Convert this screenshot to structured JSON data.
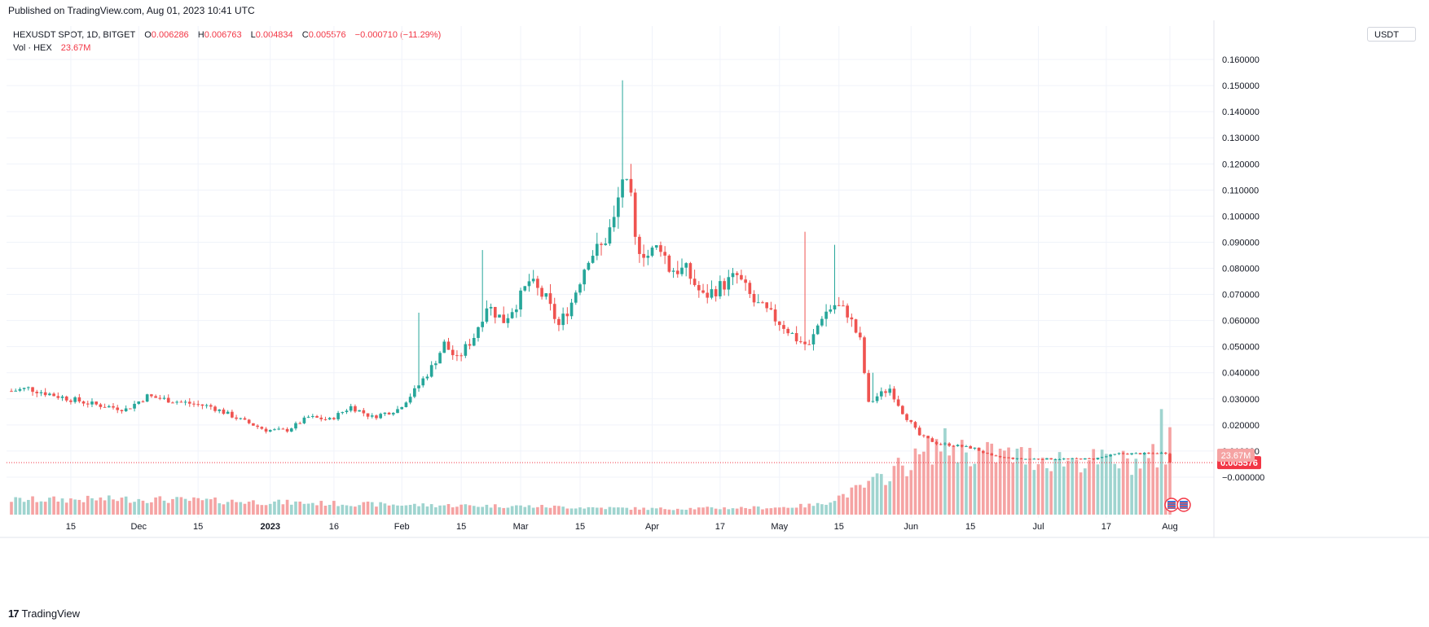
{
  "header": {
    "published": "Published on TradingView.com, Aug 01, 2023 10:41 UTC"
  },
  "legend": {
    "symbol": "HEXUSDT SPOT, 1D, BITGET",
    "open_label": "O",
    "open": "0.006286",
    "high_label": "H",
    "high": "0.006763",
    "low_label": "L",
    "low": "0.004834",
    "close_label": "C",
    "close": "0.005576",
    "change": "−0.000710 (−11.29%)",
    "vol_label": "Vol · HEX",
    "vol_value": "23.67M"
  },
  "scale": {
    "currency": "USDT"
  },
  "footer": {
    "brand": "TradingView",
    "logo_mark": "17"
  },
  "colors": {
    "up": "#26a69a",
    "down": "#ef5350",
    "vol_up": "#9fd4cf",
    "vol_down": "#f5a3a3",
    "grid": "#f0f3fa",
    "price_line": "#f23645"
  },
  "icons": {
    "flags": [
      "us-flag-icon",
      "us-flag-icon"
    ]
  },
  "chart_data": {
    "type": "candlestick",
    "symbol": "HEXUSDT",
    "interval": "1D",
    "y_ticks": [
      "0.160000",
      "0.150000",
      "0.140000",
      "0.130000",
      "0.120000",
      "0.110000",
      "0.100000",
      "0.090000",
      "0.080000",
      "0.070000",
      "0.060000",
      "0.050000",
      "0.040000",
      "0.030000",
      "0.020000",
      "0.010000",
      "−0.000000"
    ],
    "y_range": [
      -0.005,
      0.165
    ],
    "x_ticks": [
      {
        "label": "15",
        "date": "2022-11-15"
      },
      {
        "label": "Dec",
        "date": "2022-12-01"
      },
      {
        "label": "15",
        "date": "2022-12-15"
      },
      {
        "label": "2023",
        "date": "2023-01-01",
        "bold": true
      },
      {
        "label": "16",
        "date": "2023-01-16"
      },
      {
        "label": "Feb",
        "date": "2023-02-01"
      },
      {
        "label": "15",
        "date": "2023-02-15"
      },
      {
        "label": "Mar",
        "date": "2023-03-01"
      },
      {
        "label": "15",
        "date": "2023-03-15"
      },
      {
        "label": "Apr",
        "date": "2023-04-01"
      },
      {
        "label": "17",
        "date": "2023-04-17"
      },
      {
        "label": "May",
        "date": "2023-05-01"
      },
      {
        "label": "15",
        "date": "2023-05-15"
      },
      {
        "label": "Jun",
        "date": "2023-06-01"
      },
      {
        "label": "15",
        "date": "2023-06-15"
      },
      {
        "label": "Jul",
        "date": "2023-07-01"
      },
      {
        "label": "17",
        "date": "2023-07-17"
      },
      {
        "label": "Aug",
        "date": "2023-08-01"
      }
    ],
    "last_price": 0.005576,
    "last_price_label": "0.005576",
    "last_volume_label": "23.67M",
    "price_keypoints": [
      [
        "2022-11-01",
        0.033
      ],
      [
        "2022-11-05",
        0.034
      ],
      [
        "2022-11-12",
        0.031
      ],
      [
        "2022-11-20",
        0.028
      ],
      [
        "2022-11-28",
        0.026
      ],
      [
        "2022-12-03",
        0.031
      ],
      [
        "2022-12-10",
        0.029
      ],
      [
        "2022-12-18",
        0.027
      ],
      [
        "2022-12-25",
        0.022
      ],
      [
        "2022-12-31",
        0.018
      ],
      [
        "2023-01-05",
        0.018
      ],
      [
        "2023-01-10",
        0.023
      ],
      [
        "2023-01-15",
        0.022
      ],
      [
        "2023-01-20",
        0.027
      ],
      [
        "2023-01-25",
        0.023
      ],
      [
        "2023-01-31",
        0.026
      ],
      [
        "2023-02-04",
        0.033
      ],
      [
        "2023-02-08",
        0.042
      ],
      [
        "2023-02-11",
        0.051
      ],
      [
        "2023-02-14",
        0.045
      ],
      [
        "2023-02-18",
        0.054
      ],
      [
        "2023-02-21",
        0.066
      ],
      [
        "2023-02-25",
        0.06
      ],
      [
        "2023-03-01",
        0.069
      ],
      [
        "2023-03-03",
        0.075
      ],
      [
        "2023-03-07",
        0.068
      ],
      [
        "2023-03-10",
        0.058
      ],
      [
        "2023-03-13",
        0.067
      ],
      [
        "2023-03-17",
        0.085
      ],
      [
        "2023-03-20",
        0.088
      ],
      [
        "2023-03-23",
        0.098
      ],
      [
        "2023-03-25",
        0.115
      ],
      [
        "2023-03-27",
        0.105
      ],
      [
        "2023-03-28",
        0.09
      ],
      [
        "2023-03-31",
        0.085
      ],
      [
        "2023-04-03",
        0.089
      ],
      [
        "2023-04-05",
        0.08
      ],
      [
        "2023-04-09",
        0.079
      ],
      [
        "2023-04-13",
        0.069
      ],
      [
        "2023-04-17",
        0.073
      ],
      [
        "2023-04-21",
        0.077
      ],
      [
        "2023-04-25",
        0.067
      ],
      [
        "2023-04-29",
        0.062
      ],
      [
        "2023-05-02",
        0.058
      ],
      [
        "2023-05-05",
        0.053
      ],
      [
        "2023-05-08",
        0.05
      ],
      [
        "2023-05-11",
        0.062
      ],
      [
        "2023-05-14",
        0.066
      ],
      [
        "2023-05-17",
        0.063
      ],
      [
        "2023-05-20",
        0.052
      ],
      [
        "2023-05-22",
        0.028
      ],
      [
        "2023-05-24",
        0.031
      ],
      [
        "2023-05-27",
        0.034
      ],
      [
        "2023-05-30",
        0.025
      ],
      [
        "2023-06-03",
        0.016
      ],
      [
        "2023-06-07",
        0.013
      ],
      [
        "2023-06-12",
        0.012
      ],
      [
        "2023-06-16",
        0.011
      ],
      [
        "2023-06-20",
        0.008
      ],
      [
        "2023-06-26",
        0.007
      ],
      [
        "2023-07-02",
        0.007
      ],
      [
        "2023-07-08",
        0.007
      ],
      [
        "2023-07-14",
        0.007
      ],
      [
        "2023-07-20",
        0.009
      ],
      [
        "2023-07-26",
        0.009
      ],
      [
        "2023-07-31",
        0.0093
      ],
      [
        "2023-08-01",
        0.005576
      ]
    ],
    "volume_keypoints_millions": [
      [
        "2022-11-01",
        4.5
      ],
      [
        "2022-12-01",
        4.8
      ],
      [
        "2023-01-01",
        3.8
      ],
      [
        "2023-02-01",
        3.0
      ],
      [
        "2023-03-01",
        2.6
      ],
      [
        "2023-04-01",
        1.8
      ],
      [
        "2023-05-01",
        2.2
      ],
      [
        "2023-05-10",
        3.0
      ],
      [
        "2023-05-14",
        5.0
      ],
      [
        "2023-05-20",
        8.0
      ],
      [
        "2023-05-25",
        11.0
      ],
      [
        "2023-05-28",
        14.0
      ],
      [
        "2023-06-01",
        16.0
      ],
      [
        "2023-06-08",
        22.0
      ],
      [
        "2023-06-15",
        19.0
      ],
      [
        "2023-06-25",
        18.0
      ],
      [
        "2023-07-05",
        17.0
      ],
      [
        "2023-07-15",
        16.5
      ],
      [
        "2023-07-25",
        16.0
      ],
      [
        "2023-07-29",
        18.0
      ],
      [
        "2023-07-30",
        36.0
      ],
      [
        "2023-07-31",
        16.0
      ],
      [
        "2023-08-01",
        23.67
      ]
    ],
    "wick_spikes": [
      [
        "2023-02-05",
        0.063
      ],
      [
        "2023-02-20",
        0.087
      ],
      [
        "2023-03-25",
        0.152
      ],
      [
        "2023-05-07",
        0.094
      ],
      [
        "2023-05-14",
        0.089
      ],
      [
        "2023-05-23",
        0.04
      ],
      [
        "2023-03-27",
        0.12
      ]
    ]
  }
}
